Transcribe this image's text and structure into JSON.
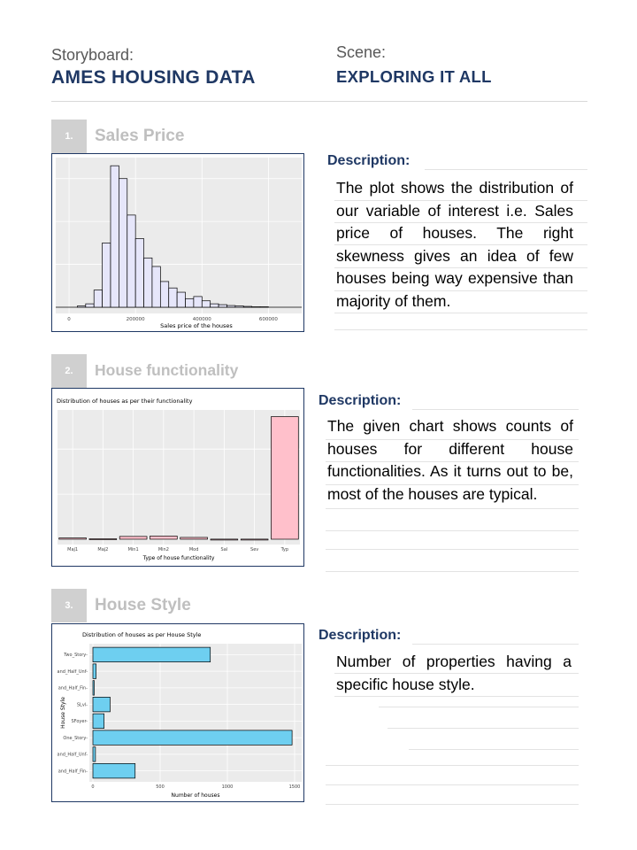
{
  "header": {
    "storyboard_label": "Storyboard:",
    "storyboard_title": "AMES HOUSING DATA",
    "scene_label": "Scene:",
    "scene_title": "EXPLORING IT ALL"
  },
  "sections": [
    {
      "number": "1.",
      "title": "Sales Price",
      "description_label": "Description:",
      "description": "The plot shows the distribution of our variable of interest i.e. Sales price of houses. The right skewness gives an idea of few houses being way expensive than majority of them."
    },
    {
      "number": "2.",
      "title": "House functionality",
      "description_label": "Description:",
      "description": "The given chart shows counts of houses for different house functionalities. As it turns out to be, most of the houses are typical."
    },
    {
      "number": "3.",
      "title": "House Style",
      "description_label": "Description:",
      "description": "Number of properties having a specific house style."
    }
  ],
  "chart_data": [
    {
      "type": "bar",
      "title": "",
      "xlabel": "Sales price of the houses",
      "ylabel": "",
      "x_ticks": [
        "0",
        "200000",
        "400000",
        "600000"
      ],
      "x_range": [
        -40000,
        700000
      ],
      "bin_width": 25000,
      "bin_start": 25000,
      "values": [
        3,
        8,
        40,
        150,
        330,
        300,
        215,
        160,
        115,
        95,
        60,
        45,
        35,
        20,
        25,
        15,
        8,
        6,
        4,
        3,
        2,
        1,
        1
      ],
      "bar_fill": "#e6e6fa",
      "bar_stroke": "#000000",
      "panel_bg": "#ebebeb"
    },
    {
      "type": "bar",
      "title": "Distribution of houses as per their functionality",
      "xlabel": "Type of house functionality",
      "ylabel": "",
      "categories": [
        "Maj1",
        "Maj2",
        "Min1",
        "Min2",
        "Mod",
        "Sal",
        "Sev",
        "Typ"
      ],
      "values": [
        14,
        5,
        31,
        35,
        20,
        1,
        1,
        1360
      ],
      "bar_fill": "#ffc0cb",
      "bar_stroke": "#000000",
      "panel_bg": "#ebebeb"
    },
    {
      "type": "bar",
      "orientation": "horizontal",
      "title": "Distribution of houses as per House Style",
      "xlabel": "Number of houses",
      "ylabel": "House Style",
      "categories": [
        "Two_Story",
        "and_Half_Unf",
        "and_Half_Fin",
        "SLvl",
        "SFoyer",
        "One_Story",
        "and_Half_Unf",
        "and_Half_Fin"
      ],
      "values": [
        873,
        24,
        8,
        128,
        83,
        1481,
        19,
        314
      ],
      "x_ticks": [
        "0",
        "500",
        "1000",
        "1500"
      ],
      "x_range": [
        0,
        1500
      ],
      "bar_fill": "#6ecff0",
      "bar_stroke": "#000000",
      "panel_bg": "#ebebeb"
    }
  ]
}
